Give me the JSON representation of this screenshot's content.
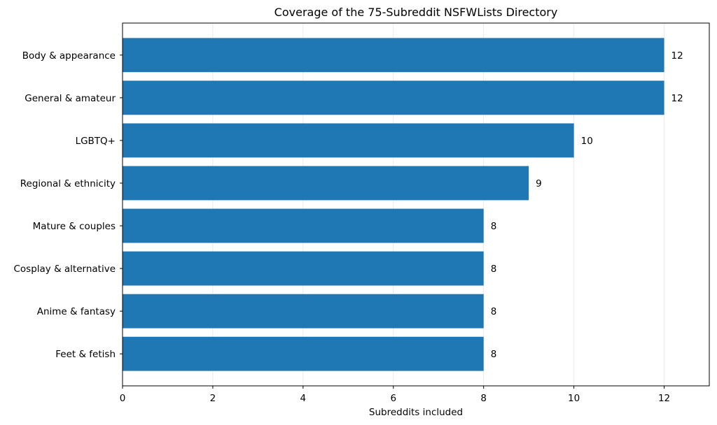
{
  "chart_data": {
    "type": "bar",
    "orientation": "horizontal",
    "title": "Coverage of the 75-Subreddit NSFWLists Directory",
    "xlabel": "Subreddits included",
    "ylabel": "",
    "categories": [
      "Body & appearance",
      "General & amateur",
      "LGBTQ+",
      "Regional & ethnicity",
      "Mature & couples",
      "Cosplay & alternative",
      "Anime & fantasy",
      "Feet & fetish"
    ],
    "values": [
      12,
      12,
      10,
      9,
      8,
      8,
      8,
      8
    ],
    "value_labels": [
      "12",
      "12",
      "10",
      "9",
      "8",
      "8",
      "8",
      "8"
    ],
    "xlim": [
      0,
      13
    ],
    "xticks": [
      0,
      2,
      4,
      6,
      8,
      10,
      12
    ],
    "xtick_labels": [
      "0",
      "2",
      "4",
      "6",
      "8",
      "10",
      "12"
    ],
    "grid": "vertical",
    "legend": "none",
    "colors": {
      "bar": "#1f77b4",
      "grid": "#e6e6e6",
      "axis": "#000000"
    }
  }
}
